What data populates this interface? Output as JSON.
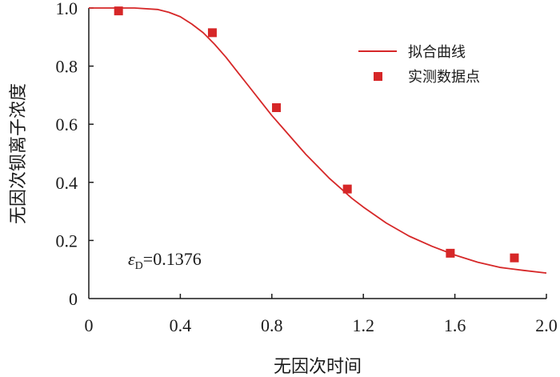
{
  "chart_data": {
    "type": "line",
    "xlabel": "无因次时间",
    "ylabel": "无因次钡离子浓度",
    "xlim": [
      0,
      2.0
    ],
    "ylim": [
      0,
      1.0
    ],
    "x_ticks": [
      "0",
      "0.4",
      "0.8",
      "1.2",
      "1.6",
      "2.0"
    ],
    "x_tick_values": [
      0,
      0.4,
      0.8,
      1.2,
      1.6,
      2.0
    ],
    "y_ticks": [
      "0",
      "0.2",
      "0.4",
      "0.6",
      "0.8",
      "1.0"
    ],
    "y_tick_values": [
      0,
      0.2,
      0.4,
      0.6,
      0.8,
      1.0
    ],
    "grid": false,
    "legend_position": "top-right",
    "series": [
      {
        "name": "拟合曲线",
        "kind": "line",
        "color": "#d62728",
        "x": [
          0,
          0.1,
          0.2,
          0.3,
          0.35,
          0.4,
          0.45,
          0.5,
          0.55,
          0.6,
          0.65,
          0.7,
          0.75,
          0.8,
          0.85,
          0.9,
          0.95,
          1.0,
          1.05,
          1.1,
          1.15,
          1.2,
          1.3,
          1.4,
          1.5,
          1.6,
          1.7,
          1.8,
          1.9,
          2.0
        ],
        "y": [
          1.0,
          1.0,
          1.0,
          0.995,
          0.985,
          0.97,
          0.945,
          0.915,
          0.875,
          0.83,
          0.78,
          0.73,
          0.68,
          0.63,
          0.585,
          0.54,
          0.495,
          0.455,
          0.415,
          0.38,
          0.345,
          0.315,
          0.26,
          0.215,
          0.18,
          0.15,
          0.125,
          0.107,
          0.097,
          0.088
        ]
      },
      {
        "name": "实测数据点",
        "kind": "scatter",
        "color": "#d62728",
        "x": [
          0.13,
          0.54,
          0.82,
          1.13,
          1.58,
          1.86
        ],
        "y": [
          0.99,
          0.915,
          0.657,
          0.377,
          0.156,
          0.14
        ]
      }
    ],
    "annotation": {
      "symbol": "ε",
      "subscript": "D",
      "value": "=0.1376"
    }
  }
}
